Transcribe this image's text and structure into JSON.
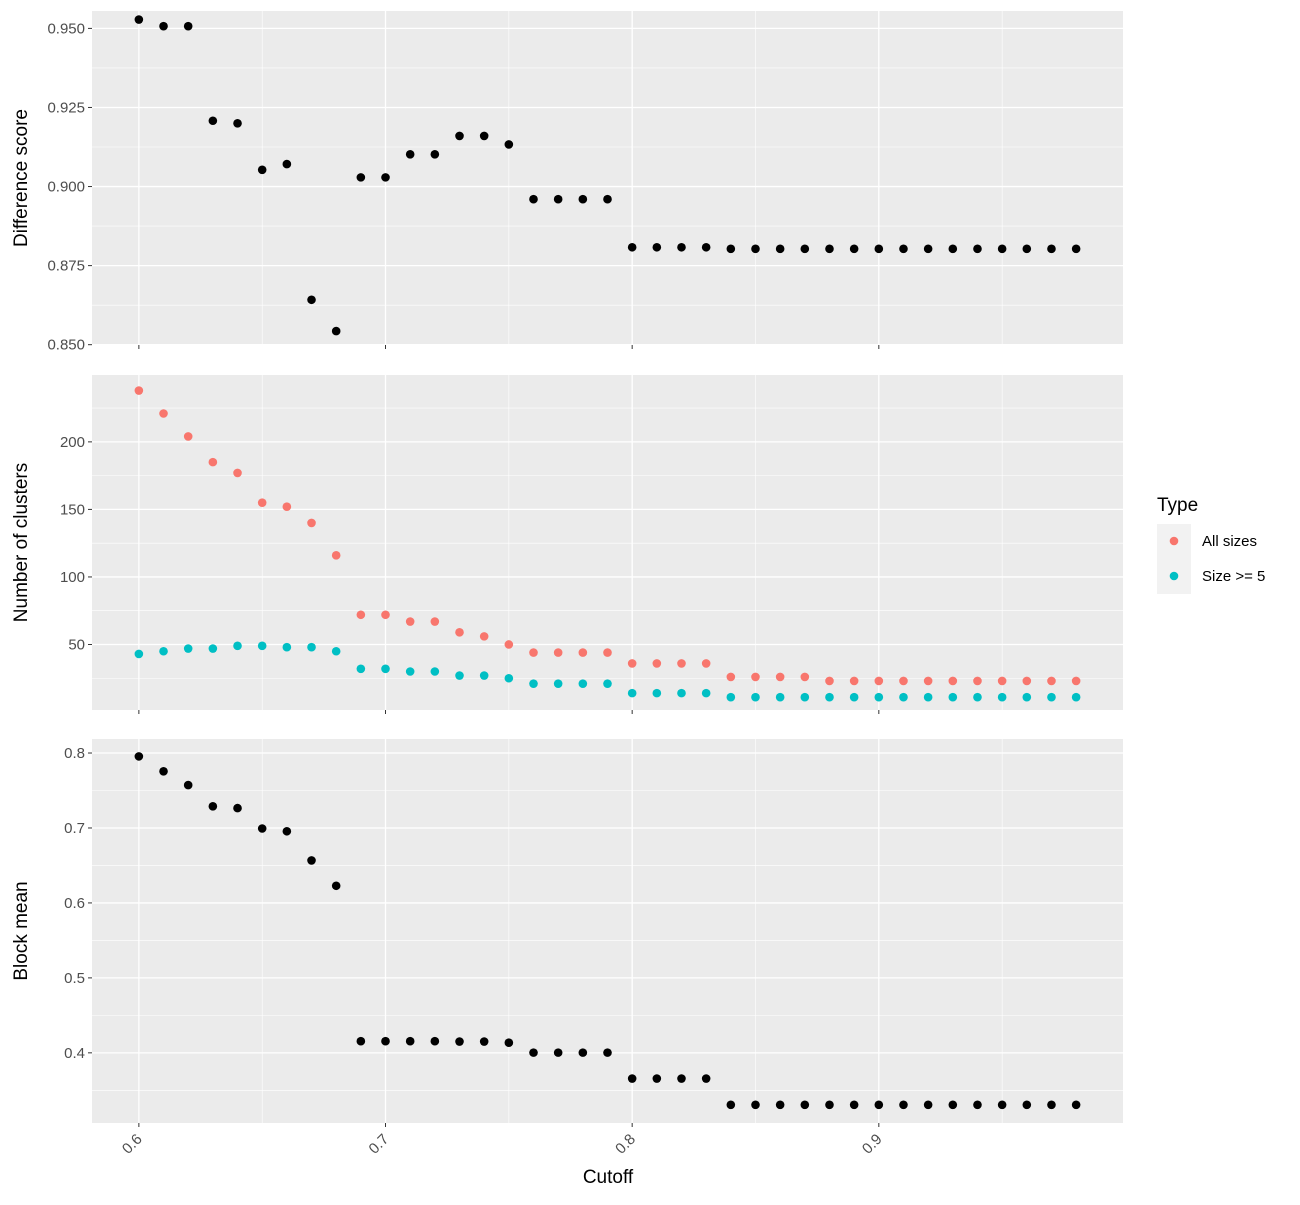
{
  "chart_data": {
    "type": "scatter",
    "x_title": "Cutoff",
    "x_ticks": [
      "0.6",
      "0.7",
      "0.8",
      "0.9"
    ],
    "xlim": [
      0.581,
      0.999
    ],
    "x": [
      0.6,
      0.61,
      0.62,
      0.63,
      0.64,
      0.65,
      0.66,
      0.67,
      0.68,
      0.69,
      0.7,
      0.71,
      0.72,
      0.73,
      0.74,
      0.75,
      0.76,
      0.77,
      0.78,
      0.79,
      0.8,
      0.81,
      0.82,
      0.83,
      0.84,
      0.85,
      0.86,
      0.87,
      0.88,
      0.89,
      0.9,
      0.91,
      0.92,
      0.93,
      0.94,
      0.95,
      0.96,
      0.97,
      0.98
    ],
    "panels": [
      {
        "ylabel": "Difference score",
        "ylim": [
          0.8499,
          0.9555
        ],
        "y_ticks": [
          "0.850",
          "0.875",
          "0.900",
          "0.925",
          "0.950"
        ],
        "y_tick_values": [
          0.85,
          0.875,
          0.9,
          0.925,
          0.95
        ],
        "grid": true,
        "series": [
          {
            "color": "#000000",
            "values": [
              0.9528,
              0.9507,
              0.9507,
              0.9208,
              0.92,
              0.9053,
              0.9071,
              0.8642,
              0.8543,
              0.9029,
              0.9029,
              0.9102,
              0.9102,
              0.916,
              0.916,
              0.9133,
              0.896,
              0.896,
              0.896,
              0.896,
              0.8808,
              0.8808,
              0.8808,
              0.8808,
              0.8803,
              0.8803,
              0.8803,
              0.8803,
              0.8803,
              0.8803,
              0.8803,
              0.8803,
              0.8803,
              0.8803,
              0.8803,
              0.8803,
              0.8803,
              0.8803,
              0.8803
            ]
          }
        ]
      },
      {
        "ylabel": "Number of clusters",
        "ylim": [
          1.5,
          249.5
        ],
        "y_ticks": [
          "50",
          "100",
          "150",
          "200"
        ],
        "y_tick_values": [
          50,
          100,
          150,
          200
        ],
        "grid": true,
        "series": [
          {
            "name": "All sizes",
            "color": "#F8766D",
            "values": [
              238,
              221,
              204,
              185,
              177,
              155,
              152,
              140,
              116,
              72,
              72,
              67,
              67,
              59,
              56,
              50,
              44,
              44,
              44,
              44,
              36,
              36,
              36,
              36,
              26,
              26,
              26,
              26,
              23,
              23,
              23,
              23,
              23,
              23,
              23,
              23,
              23,
              23,
              23
            ]
          },
          {
            "name": "Size >= 5",
            "color": "#00BFC4",
            "values": [
              43,
              45,
              47,
              47,
              49,
              49,
              48,
              48,
              45,
              32,
              32,
              30,
              30,
              27,
              27,
              25,
              21,
              21,
              21,
              21,
              14,
              14,
              14,
              14,
              11,
              11,
              11,
              11,
              11,
              11,
              11,
              11,
              11,
              11,
              11,
              11,
              11,
              11,
              11
            ]
          }
        ]
      },
      {
        "ylabel": "Block mean",
        "ylim": [
          0.3064,
          0.8187
        ],
        "y_ticks": [
          "0.4",
          "0.5",
          "0.6",
          "0.7",
          "0.8"
        ],
        "y_tick_values": [
          0.4,
          0.5,
          0.6,
          0.7,
          0.8
        ],
        "grid": true,
        "series": [
          {
            "color": "#000000",
            "values": [
              0.7955,
              0.7756,
              0.7572,
              0.7289,
              0.7265,
              0.6993,
              0.6956,
              0.6567,
              0.6229,
              0.4155,
              0.4155,
              0.4155,
              0.4155,
              0.4151,
              0.4151,
              0.4135,
              0.4003,
              0.4003,
              0.4003,
              0.4003,
              0.3657,
              0.3657,
              0.3657,
              0.3657,
              0.3307,
              0.3307,
              0.3307,
              0.3307,
              0.3307,
              0.3307,
              0.3307,
              0.3307,
              0.3307,
              0.3307,
              0.3307,
              0.3307,
              0.3307,
              0.3307,
              0.3307
            ]
          }
        ]
      }
    ],
    "legend": {
      "title": "Type",
      "position": "right",
      "entries": [
        {
          "label": "All sizes",
          "color": "#F8766D"
        },
        {
          "label": "Size >= 5",
          "color": "#00BFC4"
        }
      ]
    },
    "colors": {
      "panel_background": "#EBEBEB",
      "grid": "#FFFFFF",
      "tick_text": "#4D4D4D",
      "tick_mark": "#333333"
    }
  }
}
